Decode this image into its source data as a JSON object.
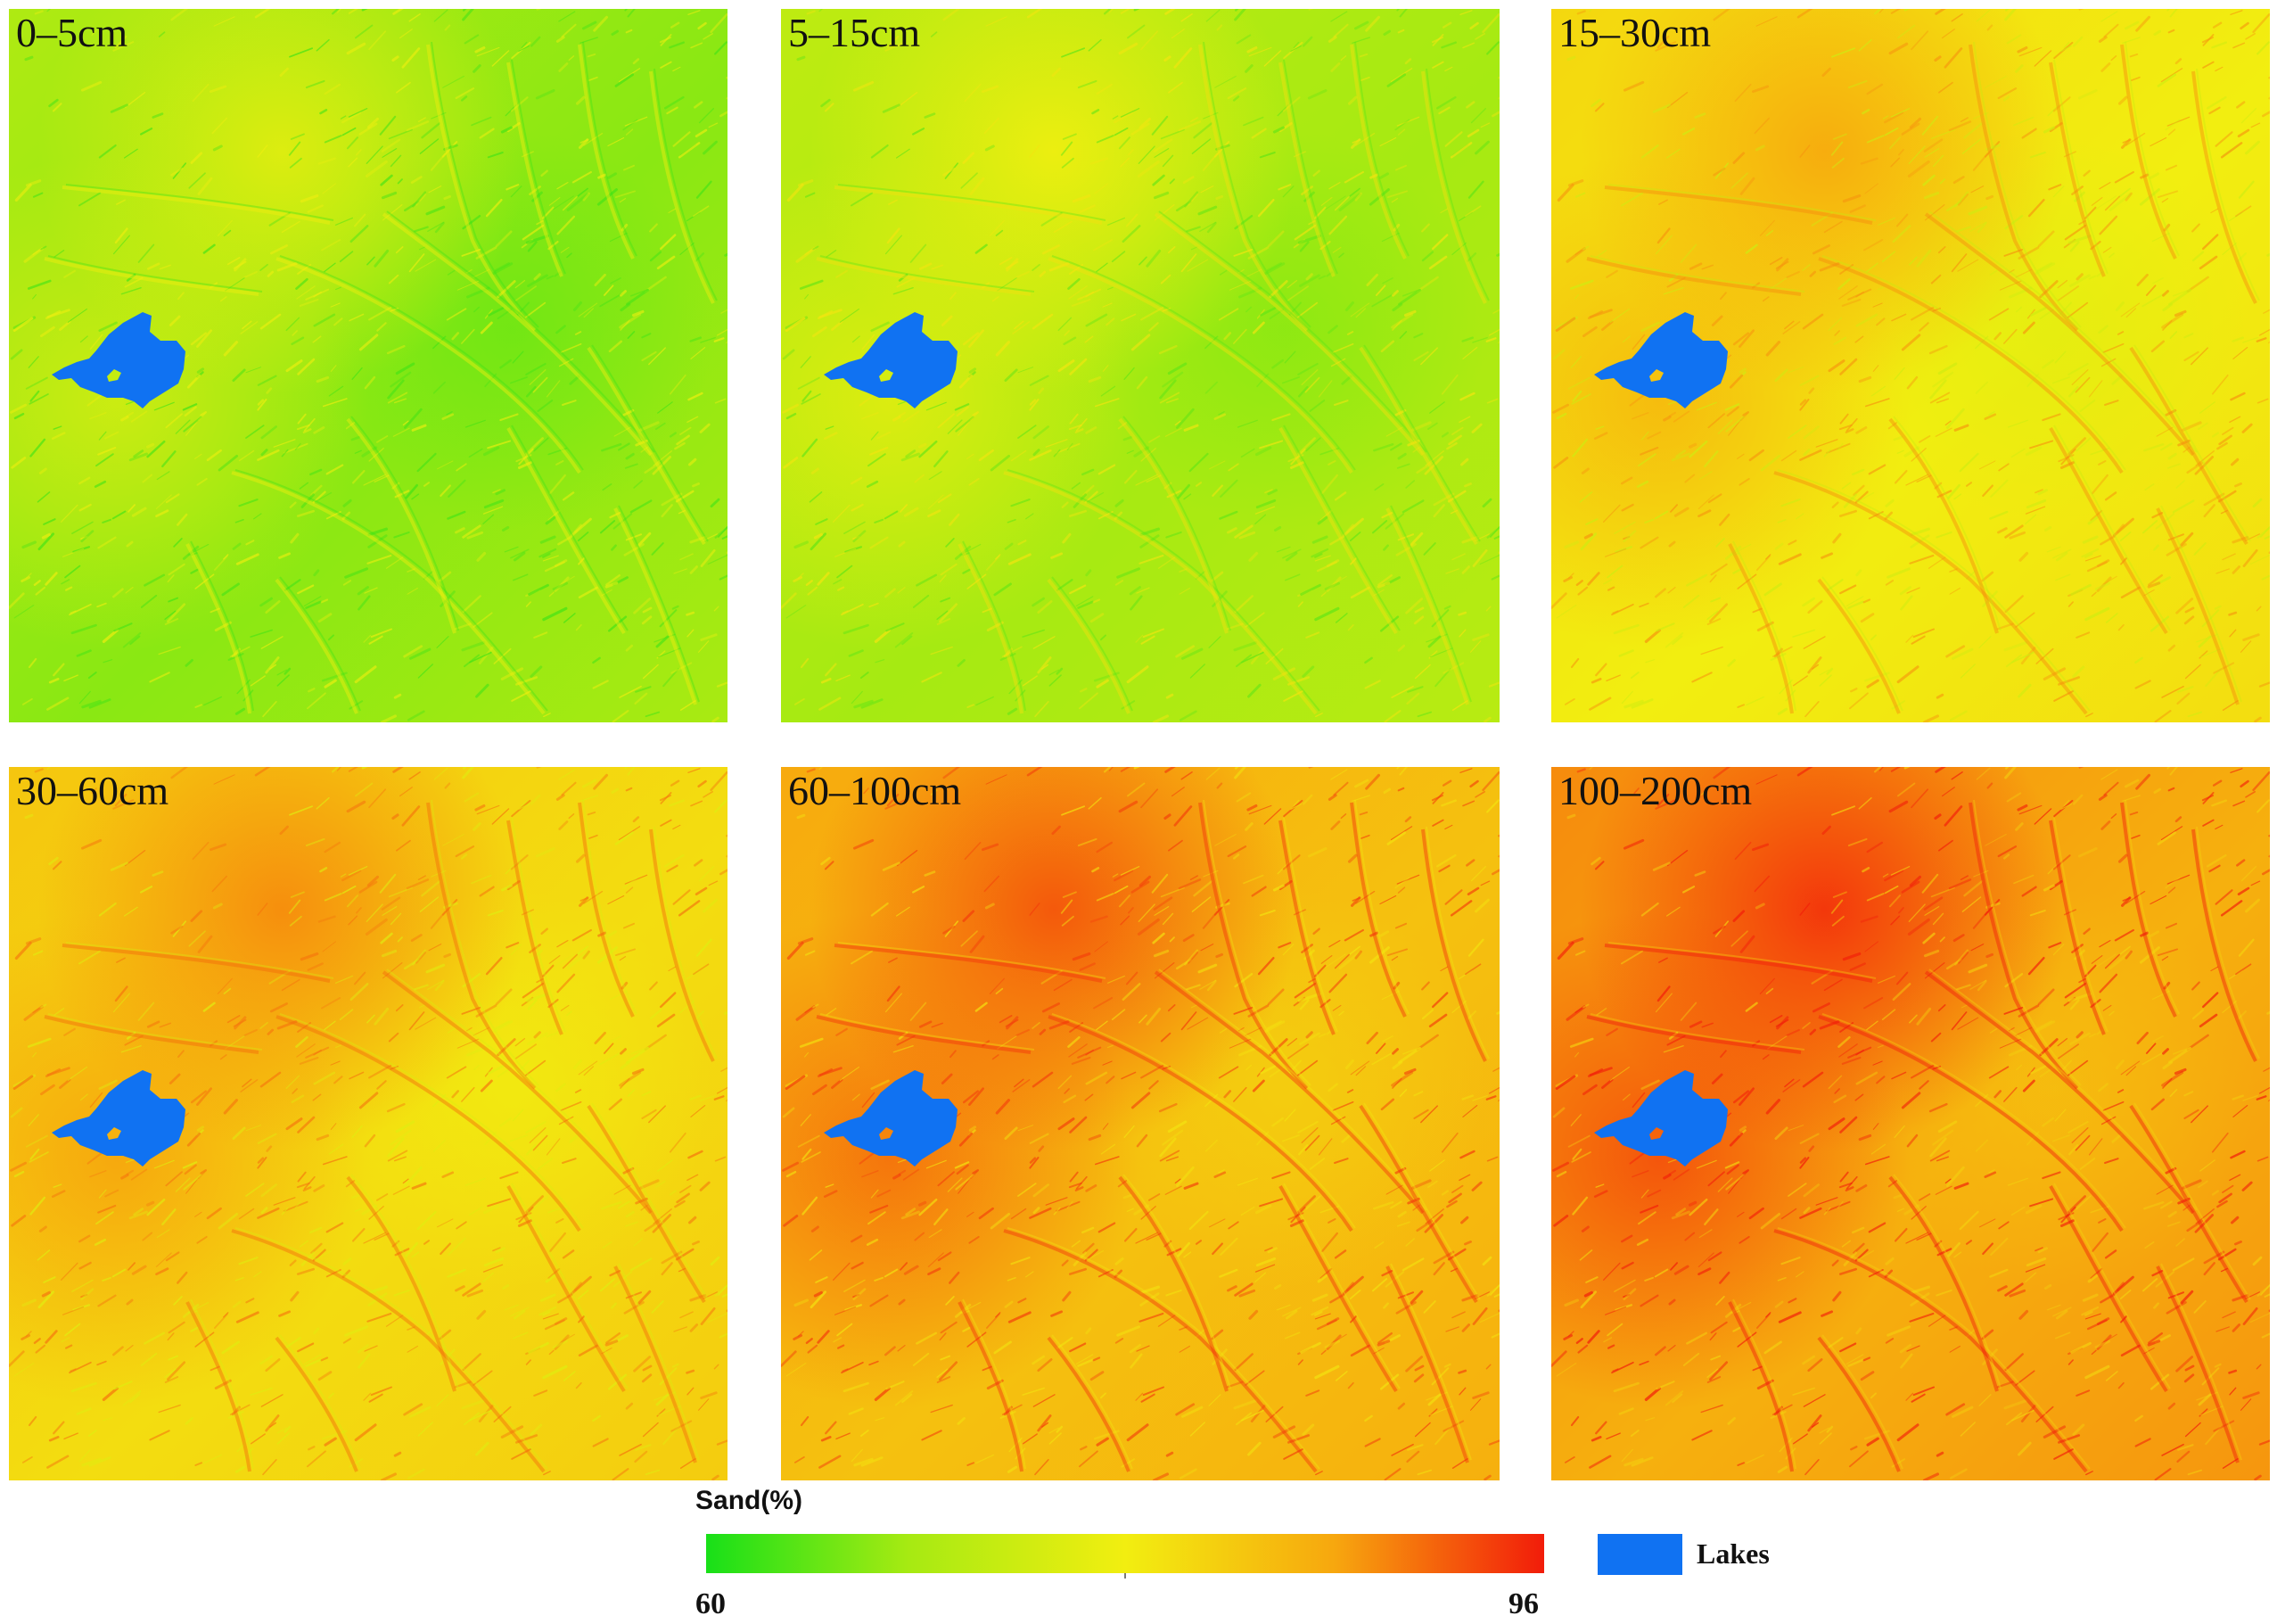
{
  "panels": [
    {
      "label": "0–5cm",
      "level": 0.3
    },
    {
      "label": "5–15cm",
      "level": 0.35
    },
    {
      "label": "15–30cm",
      "level": 0.6
    },
    {
      "label": "30–60cm",
      "level": 0.66
    },
    {
      "label": "60–100cm",
      "level": 0.76
    },
    {
      "label": "100–200cm",
      "level": 0.82
    }
  ],
  "legend": {
    "title": "Sand(%)",
    "min_label": "60",
    "max_label": "96",
    "scale_min": 60,
    "scale_max": 96,
    "ramp_colors": [
      "#18e018",
      "#a6ea12",
      "#f2ee10",
      "#f7a70e",
      "#f21c0a"
    ],
    "lake_label": "Lakes",
    "lake_color": "#1072f2"
  }
}
